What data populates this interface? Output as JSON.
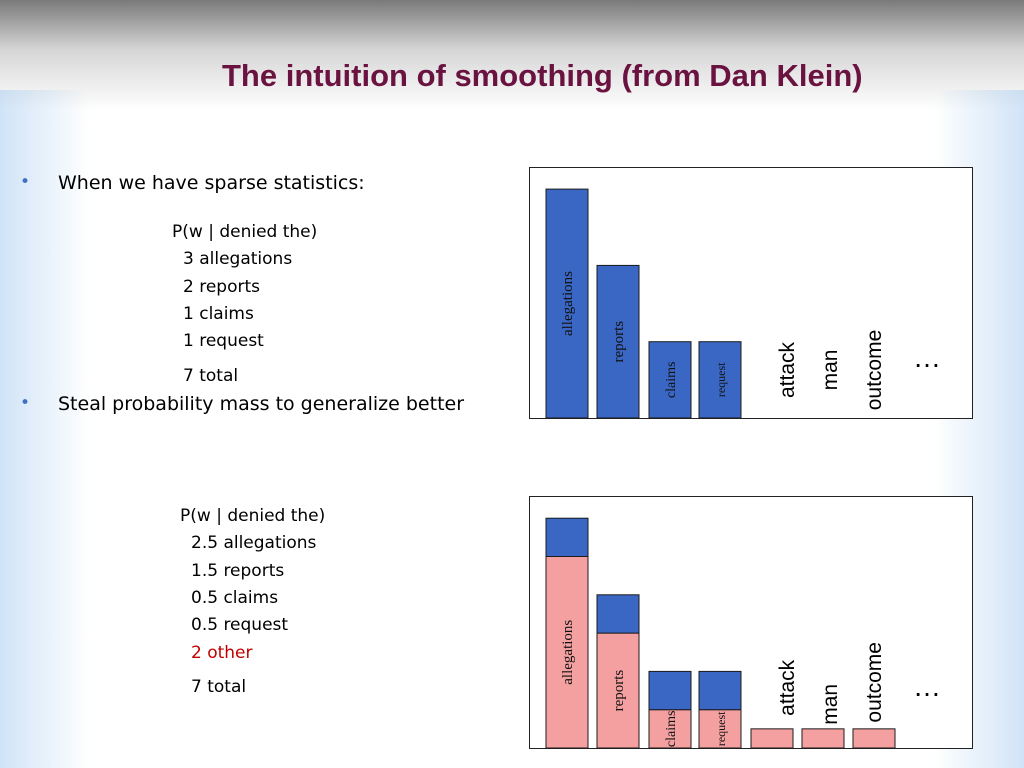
{
  "slide": {
    "title": "The intuition of smoothing (from Dan Klein)",
    "bullets": [
      "When we have sparse statistics:",
      "Steal probability mass to generalize better"
    ]
  },
  "table1": {
    "header": "P(w | denied the)",
    "rows": [
      "3 allegations",
      "2 reports",
      "1 claims",
      "1 request"
    ],
    "total": "7 total"
  },
  "table2": {
    "header": "P(w | denied the)",
    "rows": [
      "2.5 allegations",
      "1.5 reports",
      "0.5 claims",
      "0.5 request"
    ],
    "other": "2 other",
    "total": "7 total"
  },
  "colors": {
    "blue_bar": "#3a67c4",
    "pink_bar": "#f4a0a0",
    "title": "#6a1240",
    "other_text": "#c00000",
    "bullet": "#3f6fc6"
  },
  "chart_data": [
    {
      "type": "bar",
      "categories": [
        "allegations",
        "reports",
        "claims",
        "request",
        "attack",
        "man",
        "outcome"
      ],
      "values": [
        3,
        2,
        1,
        1,
        0,
        0,
        0
      ],
      "ellipsis": "…"
    },
    {
      "type": "bar",
      "stacked": true,
      "categories": [
        "allegations",
        "reports",
        "claims",
        "request",
        "attack",
        "man",
        "outcome"
      ],
      "series": [
        {
          "values": [
            2.5,
            1.5,
            0.5,
            0.5,
            0.25,
            0.25,
            0.25
          ]
        },
        {
          "values": [
            0.5,
            0.5,
            0.5,
            0.5,
            0,
            0,
            0
          ]
        }
      ],
      "ellipsis": "…"
    }
  ]
}
